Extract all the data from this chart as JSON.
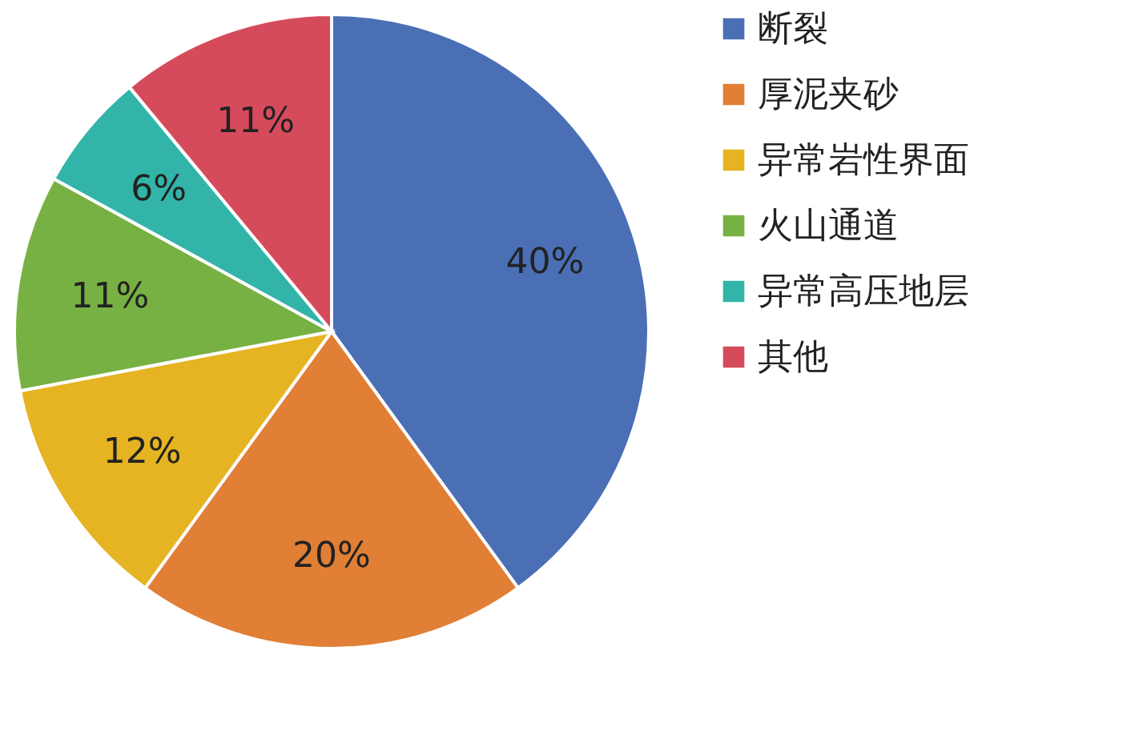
{
  "chart_data": {
    "type": "pie",
    "categories": [
      "断裂",
      "厚泥夹砂",
      "异常岩性界面",
      "火山通道",
      "异常高压地层",
      "其他"
    ],
    "values": [
      40,
      20,
      12,
      11,
      6,
      11
    ],
    "colors": [
      "#4a6fb5",
      "#e07f35",
      "#e6b422",
      "#78b143",
      "#32b5a8",
      "#d64b5c"
    ],
    "value_labels": [
      "40%",
      "20%",
      "12%",
      "11%",
      "6%",
      "11%"
    ],
    "legend": "right"
  }
}
